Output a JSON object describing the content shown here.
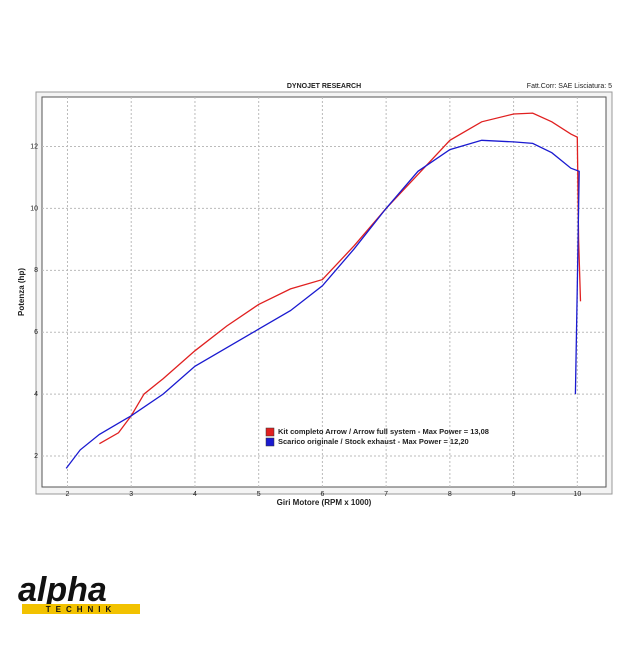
{
  "chart_data": {
    "type": "line",
    "title": "DYNOJET RESEARCH",
    "subtitle": "Fatt.Corr: SAE  Lisciatura: 5",
    "xlabel": "Giri Motore (RPM x 1000)",
    "ylabel": "Potenza (hp)",
    "xlim": [
      1.6,
      10.45
    ],
    "ylim": [
      1,
      13.6
    ],
    "xticks": [
      2,
      3,
      4,
      5,
      6,
      7,
      8,
      9,
      10
    ],
    "yticks": [
      2,
      4,
      6,
      8,
      10,
      12
    ],
    "grid": true,
    "legend": "lower right",
    "series": [
      {
        "name": "Kit completo Arrow / Arrow full system - Max Power = 13,08",
        "color": "#e02020",
        "x": [
          2.5,
          2.8,
          3.0,
          3.2,
          3.5,
          4.0,
          4.5,
          5.0,
          5.5,
          6.0,
          6.5,
          7.0,
          7.5,
          8.0,
          8.5,
          9.0,
          9.3,
          9.6,
          9.9,
          10.0,
          10.02,
          10.05
        ],
        "values": [
          2.4,
          2.75,
          3.3,
          4.0,
          4.5,
          5.4,
          6.2,
          6.9,
          7.4,
          7.7,
          8.8,
          10.0,
          11.1,
          12.2,
          12.8,
          13.05,
          13.08,
          12.8,
          12.4,
          12.3,
          9.0,
          7.0
        ]
      },
      {
        "name": "Scarico originale / Stock exhaust - Max Power = 12,20",
        "color": "#1a1ad0",
        "x": [
          1.98,
          2.2,
          2.5,
          3.0,
          3.5,
          4.0,
          4.5,
          5.0,
          5.5,
          6.0,
          6.5,
          7.0,
          7.5,
          8.0,
          8.5,
          9.0,
          9.3,
          9.6,
          9.9,
          10.03,
          10.0,
          9.97
        ],
        "values": [
          1.6,
          2.2,
          2.7,
          3.3,
          4.0,
          4.9,
          5.5,
          6.1,
          6.7,
          7.5,
          8.7,
          10.0,
          11.2,
          11.9,
          12.2,
          12.15,
          12.1,
          11.8,
          11.3,
          11.2,
          7.5,
          4.0
        ]
      }
    ]
  },
  "logo": {
    "name": "alpha",
    "sub": "TECHNIK"
  }
}
